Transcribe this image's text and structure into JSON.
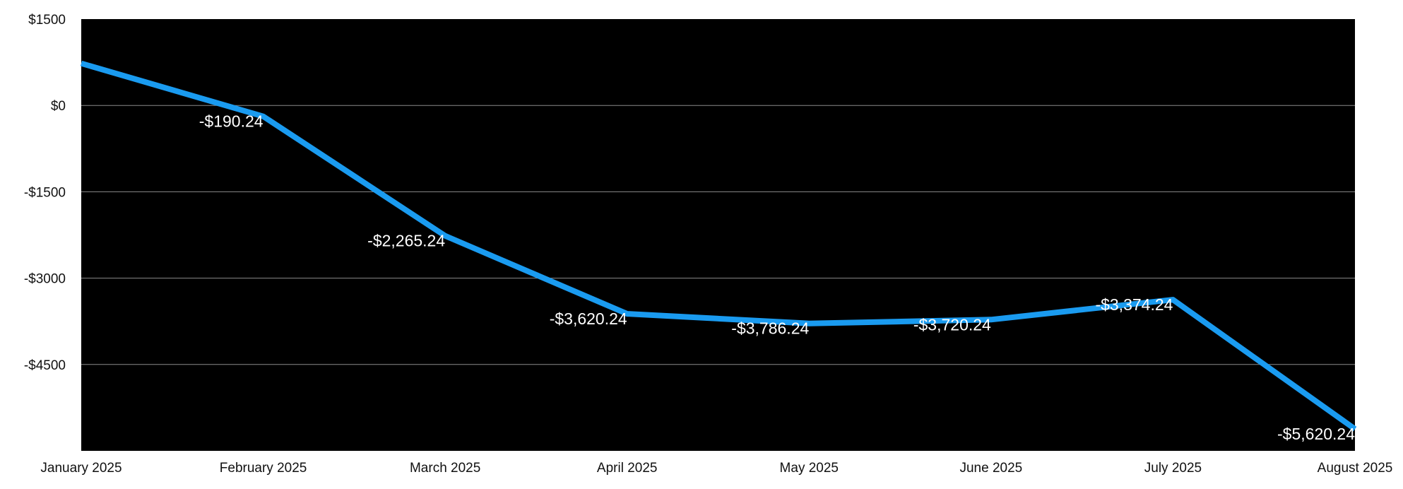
{
  "chart_data": {
    "type": "line",
    "title": "",
    "xlabel": "",
    "ylabel": "",
    "categories": [
      "January 2025",
      "February 2025",
      "March 2025",
      "April 2025",
      "May 2025",
      "June 2025",
      "July 2025",
      "August 2025"
    ],
    "series": [
      {
        "values": [
          730,
          -190.24,
          -2265.24,
          -3620.24,
          -3786.24,
          -3720.24,
          -3374.24,
          -5620.24
        ],
        "data_labels": [
          "",
          "-$190.24",
          "-$2,265.24",
          "-$3,620.24",
          "-$3,786.24",
          "-$3,720.24",
          "-$3,374.24",
          "-$5,620.24"
        ]
      }
    ],
    "ylim": [
      -6000,
      1500
    ],
    "yticks": [
      1500,
      0,
      -1500,
      -3000,
      -4500
    ],
    "ytick_labels": [
      "$1500",
      "$0",
      "-$1500",
      "-$3000",
      "-$4500"
    ],
    "grid": true,
    "legend": "none",
    "colors": {
      "plot_background": "#000000",
      "line": "#1a9bf0",
      "gridline": "#8a8a8a",
      "data_label": "#ffffff"
    }
  }
}
